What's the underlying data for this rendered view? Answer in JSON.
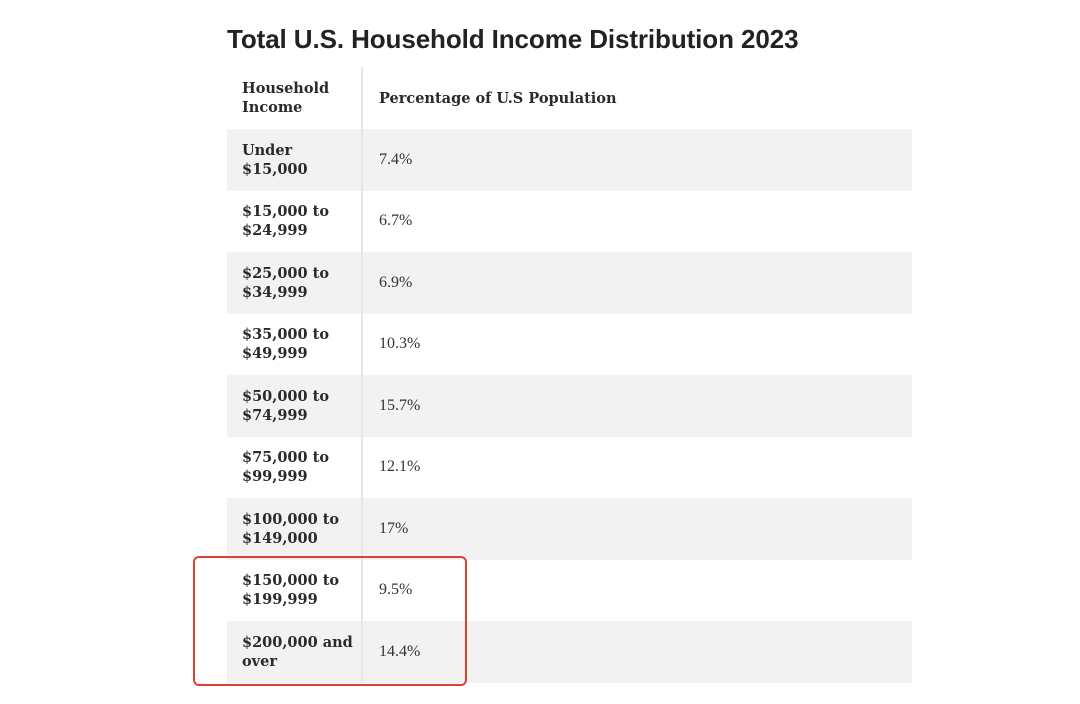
{
  "title": "Total U.S. Household Income Distribution 2023",
  "table": {
    "headers": [
      "Household Income",
      "Percentage of U.S Population"
    ],
    "rows": [
      {
        "income": "Under $15,000",
        "percent": "7.4%"
      },
      {
        "income": "$15,000 to $24,999",
        "percent": "6.7%"
      },
      {
        "income": "$25,000 to $34,999",
        "percent": "6.9%"
      },
      {
        "income": "$35,000 to $49,999",
        "percent": "10.3%"
      },
      {
        "income": "$50,000 to $74,999",
        "percent": "15.7%"
      },
      {
        "income": "$75,000 to $99,999",
        "percent": "12.1%"
      },
      {
        "income": "$100,000 to $149,000",
        "percent": "17%"
      },
      {
        "income": "$150,000 to $199,999",
        "percent": "9.5%"
      },
      {
        "income": "$200,000 and over",
        "percent": "14.4%"
      }
    ]
  },
  "highlight": {
    "color": "#d9432f",
    "rows": [
      7,
      8
    ]
  }
}
